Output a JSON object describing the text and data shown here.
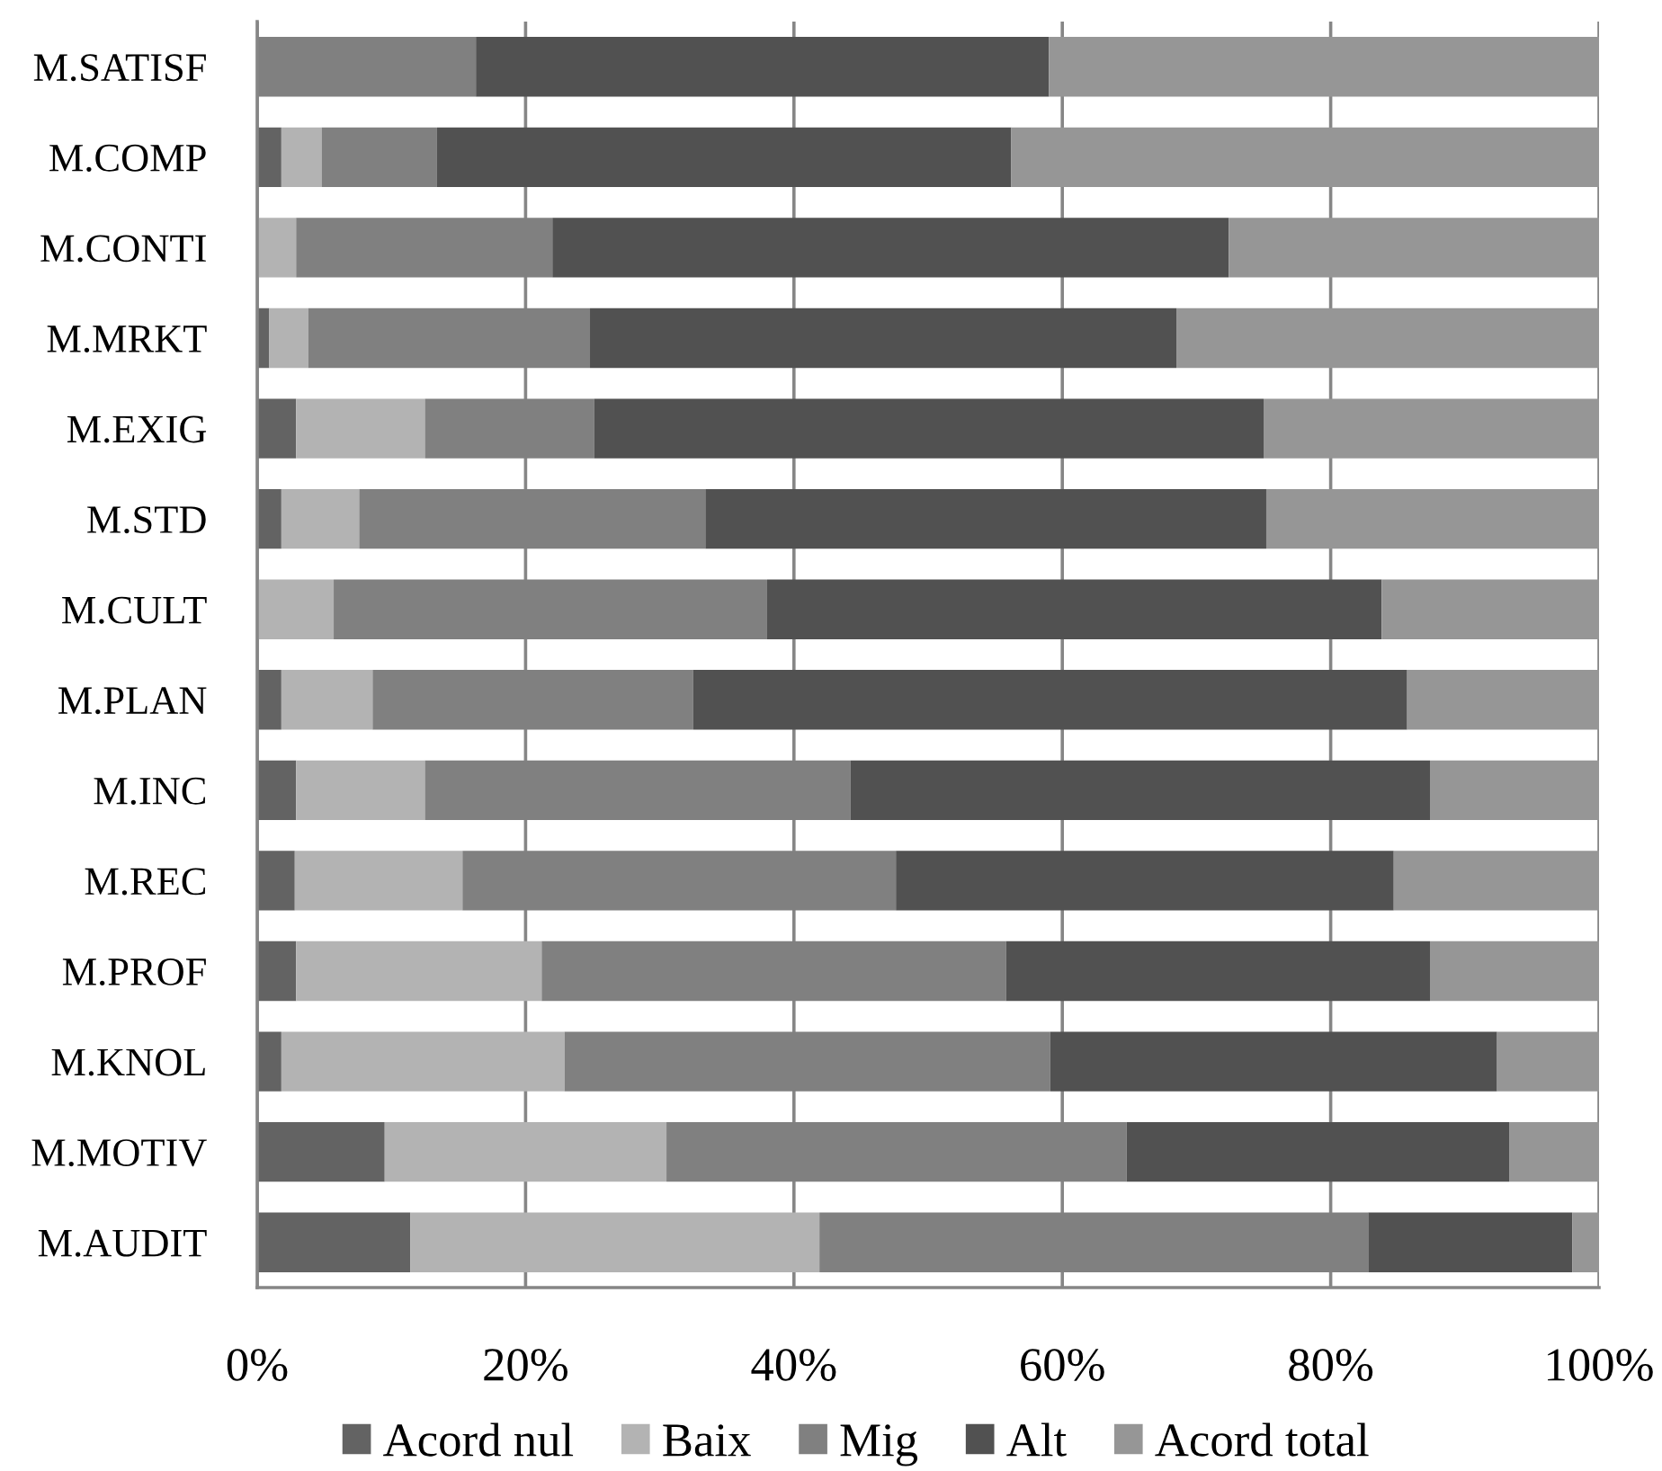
{
  "chart_data": {
    "type": "bar",
    "orientation": "horizontal",
    "stacked": true,
    "categories": [
      "M.SATISF",
      "M.COMP",
      "M.CONTI",
      "M.MRKT",
      "M.EXIG",
      "M.STD",
      "M.CULT",
      "M.PLAN",
      "M.INC",
      "M.REC",
      "M.PROF",
      "M.KNOL",
      "M.MOTIV",
      "M.AUDIT"
    ],
    "series": [
      {
        "name": "Acord nul",
        "color": "#636363",
        "values": [
          0,
          1.8,
          0,
          0.9,
          2.9,
          1.8,
          0,
          1.8,
          2.9,
          2.8,
          2.9,
          1.8,
          9.5,
          11.4
        ]
      },
      {
        "name": "Baix",
        "color": "#b3b3b3",
        "values": [
          0,
          3.0,
          2.9,
          2.9,
          9.6,
          5.8,
          5.7,
          6.8,
          9.6,
          12.5,
          18.3,
          21.1,
          21.0,
          30.5
        ]
      },
      {
        "name": "Mig",
        "color": "#808080",
        "values": [
          16.3,
          8.6,
          19.1,
          21.0,
          12.6,
          25.8,
          32.3,
          23.9,
          31.7,
          32.3,
          34.6,
          36.2,
          34.3,
          40.9
        ]
      },
      {
        "name": "Alt",
        "color": "#515151",
        "values": [
          42.7,
          42.8,
          50.4,
          43.7,
          49.9,
          41.8,
          45.8,
          53.2,
          43.2,
          37.1,
          31.6,
          33.3,
          28.5,
          15.2
        ]
      },
      {
        "name": "Acord total",
        "color": "#969696",
        "values": [
          41.0,
          43.8,
          27.6,
          31.5,
          25.0,
          24.8,
          16.2,
          14.3,
          12.6,
          15.3,
          12.6,
          7.6,
          6.7,
          2.0
        ]
      }
    ],
    "xlim": [
      0,
      100
    ],
    "xticks": [
      {
        "value": 0,
        "label": "0%"
      },
      {
        "value": 20,
        "label": "20%"
      },
      {
        "value": 40,
        "label": "40%"
      },
      {
        "value": 60,
        "label": "60%"
      },
      {
        "value": 80,
        "label": "80%"
      },
      {
        "value": 100,
        "label": "100%"
      }
    ],
    "grid": "x",
    "legend": "bottom"
  }
}
